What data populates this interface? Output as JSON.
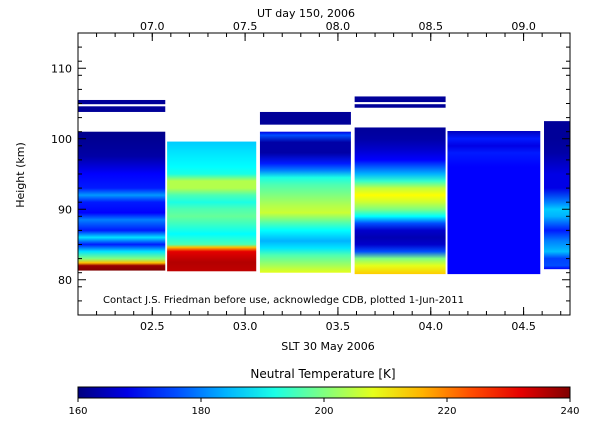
{
  "chart_data": {
    "type": "heatmap",
    "top_axis_title": "UT day 150, 2006",
    "top_ticks": [
      "07.0",
      "07.5",
      "08.0",
      "08.5",
      "09.0"
    ],
    "xlabel": "SLT 30 May 2006",
    "x_ticks": [
      "02.5",
      "03.0",
      "03.5",
      "04.0",
      "04.5"
    ],
    "xlim": [
      2.1,
      4.75
    ],
    "ylabel": "Height (km)",
    "y_ticks": [
      80,
      90,
      100,
      110
    ],
    "ylim": [
      75,
      115
    ],
    "annotation": "Contact J.S. Friedman before use, acknowledge CDB, plotted 1-Jun-2011",
    "colorbar": {
      "label": "Neutral Temperature [K]",
      "ticks": [
        160,
        180,
        200,
        220,
        240
      ],
      "range": [
        160,
        240
      ],
      "colormap": "jet"
    },
    "columns": [
      {
        "x_range": [
          2.1,
          2.57
        ],
        "profile": [
          [
            81.3,
            240
          ],
          [
            82.0,
            238
          ],
          [
            82.4,
            215
          ],
          [
            83.0,
            200
          ],
          [
            84.0,
            188
          ],
          [
            85.0,
            172
          ],
          [
            86.0,
            188
          ],
          [
            87.0,
            172
          ],
          [
            88.5,
            180
          ],
          [
            89.5,
            170
          ],
          [
            91.0,
            172
          ],
          [
            92.0,
            182
          ],
          [
            93.0,
            172
          ],
          [
            95.0,
            170
          ],
          [
            97.5,
            163
          ],
          [
            99.0,
            162
          ],
          [
            101.0,
            161
          ]
        ],
        "extra_bands": [
          [
            103.8,
            104.6,
            162
          ],
          [
            104.9,
            105.5,
            162
          ]
        ]
      },
      {
        "x_range": [
          2.58,
          3.06
        ],
        "profile": [
          [
            81.2,
            235
          ],
          [
            82.5,
            236
          ],
          [
            84.0,
            232
          ],
          [
            84.6,
            215
          ],
          [
            85.0,
            196
          ],
          [
            86.5,
            190
          ],
          [
            88.0,
            195
          ],
          [
            89.0,
            198
          ],
          [
            90.0,
            196
          ],
          [
            91.0,
            192
          ],
          [
            92.0,
            196
          ],
          [
            93.0,
            204
          ],
          [
            94.0,
            204
          ],
          [
            95.0,
            192
          ],
          [
            96.0,
            190
          ],
          [
            98.0,
            188
          ],
          [
            99.6,
            186
          ]
        ]
      },
      {
        "x_range": [
          3.08,
          3.57
        ],
        "profile": [
          [
            81.0,
            208
          ],
          [
            82.0,
            203
          ],
          [
            83.5,
            196
          ],
          [
            84.5,
            188
          ],
          [
            85.5,
            184
          ],
          [
            87.0,
            190
          ],
          [
            88.0,
            196
          ],
          [
            89.5,
            206
          ],
          [
            90.5,
            204
          ],
          [
            92.0,
            200
          ],
          [
            93.5,
            196
          ],
          [
            94.5,
            192
          ],
          [
            95.5,
            180
          ],
          [
            96.5,
            172
          ],
          [
            98.0,
            163
          ],
          [
            99.5,
            163
          ],
          [
            100.5,
            176
          ],
          [
            101.0,
            168
          ]
        ],
        "extra_bands": [
          [
            102.0,
            103.8,
            162
          ]
        ]
      },
      {
        "x_range": [
          3.59,
          4.08
        ],
        "profile": [
          [
            80.8,
            214
          ],
          [
            82.0,
            208
          ],
          [
            83.0,
            200
          ],
          [
            84.0,
            176
          ],
          [
            85.0,
            166
          ],
          [
            86.0,
            164
          ],
          [
            87.0,
            166
          ],
          [
            88.0,
            176
          ],
          [
            89.0,
            190
          ],
          [
            90.0,
            200
          ],
          [
            91.0,
            206
          ],
          [
            92.0,
            210
          ],
          [
            93.0,
            205
          ],
          [
            94.0,
            194
          ],
          [
            95.0,
            184
          ],
          [
            97.0,
            170
          ],
          [
            98.5,
            166
          ],
          [
            100.0,
            163
          ],
          [
            101.6,
            162
          ]
        ],
        "extra_bands": [
          [
            104.4,
            104.9,
            162
          ],
          [
            105.2,
            106.0,
            162
          ]
        ]
      },
      {
        "x_range": [
          4.09,
          4.59
        ],
        "profile": [
          [
            80.8,
            170
          ],
          [
            90.0,
            170
          ],
          [
            96.0,
            170
          ],
          [
            98.0,
            172
          ],
          [
            99.0,
            168
          ],
          [
            100.0,
            172
          ],
          [
            101.1,
            165
          ]
        ]
      },
      {
        "x_range": [
          4.61,
          4.75
        ],
        "profile": [
          [
            81.5,
            170
          ],
          [
            82.0,
            176
          ],
          [
            83.0,
            175
          ],
          [
            84.0,
            185
          ],
          [
            85.5,
            180
          ],
          [
            87.0,
            172
          ],
          [
            88.0,
            178
          ],
          [
            89.0,
            184
          ],
          [
            90.0,
            186
          ],
          [
            91.0,
            180
          ],
          [
            93.0,
            168
          ],
          [
            95.0,
            168
          ],
          [
            98.0,
            163
          ],
          [
            100.0,
            162
          ],
          [
            102.5,
            162
          ]
        ]
      }
    ]
  }
}
